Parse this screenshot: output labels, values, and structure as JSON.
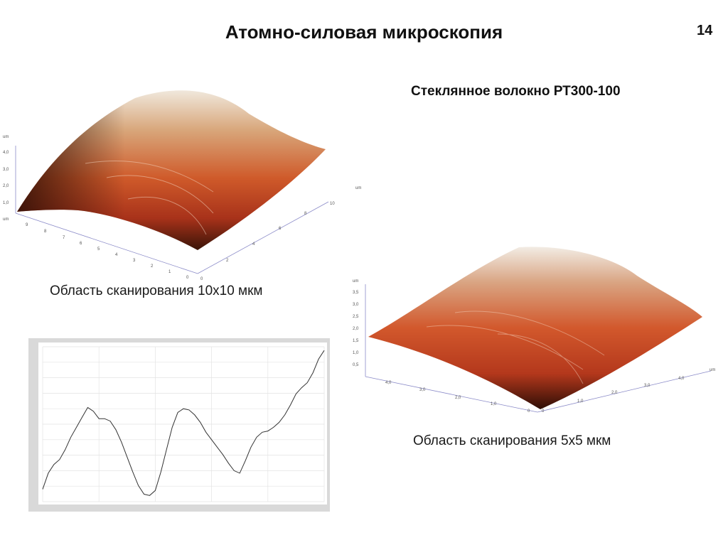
{
  "slide": {
    "title": "Атомно-силовая микроскопия",
    "page_number": "14",
    "subtitle": "Стеклянное волокно РТ300-100"
  },
  "scan_10x10": {
    "caption": "Область сканирования 10х10 мкм",
    "z_unit": "um",
    "z_ticks": [
      "4,0",
      "3,0",
      "2,0",
      "1,0",
      "um"
    ],
    "x_ticks": [
      "0",
      "2",
      "4",
      "6",
      "8",
      "10",
      "um"
    ],
    "y_ticks": [
      "9",
      "8",
      "7",
      "6",
      "5",
      "4",
      "3",
      "2",
      "1",
      "0"
    ]
  },
  "scan_5x5": {
    "caption": "Область сканирования 5х5 мкм",
    "z_unit": "um",
    "z_ticks": [
      "3,5",
      "3,0",
      "2,5",
      "2,0",
      "1,5",
      "1,0",
      "0,5"
    ],
    "x_ticks": [
      "0",
      "1,0",
      "2,0",
      "3,0",
      "4,0",
      "um"
    ],
    "y_ticks": [
      "0",
      "1,0",
      "2,0",
      "3,0",
      "4,0"
    ]
  },
  "chart_data": {
    "type": "line",
    "title": "",
    "xlabel": "",
    "ylabel": "",
    "grid": true,
    "x": [
      0,
      2,
      4,
      6,
      8,
      10,
      12,
      14,
      16,
      18,
      20,
      22,
      24,
      26,
      28,
      30,
      32,
      34,
      36,
      38,
      40,
      42,
      44,
      46,
      48,
      50,
      52,
      54,
      56,
      58,
      60,
      62,
      64,
      66,
      68,
      70,
      72,
      74,
      76,
      78,
      80,
      82,
      84,
      86,
      88,
      90,
      92,
      94,
      96,
      98,
      100
    ],
    "series": [
      {
        "values": [
          0.1,
          0.23,
          0.3,
          0.34,
          0.42,
          0.52,
          0.6,
          0.68,
          0.76,
          0.73,
          0.67,
          0.67,
          0.65,
          0.58,
          0.48,
          0.36,
          0.24,
          0.13,
          0.06,
          0.05,
          0.09,
          0.24,
          0.42,
          0.6,
          0.72,
          0.75,
          0.74,
          0.7,
          0.64,
          0.56,
          0.5,
          0.44,
          0.38,
          0.31,
          0.25,
          0.23,
          0.33,
          0.44,
          0.52,
          0.56,
          0.57,
          0.6,
          0.64,
          0.7,
          0.78,
          0.87,
          0.92,
          0.96,
          1.04,
          1.15,
          1.22
        ]
      }
    ]
  }
}
